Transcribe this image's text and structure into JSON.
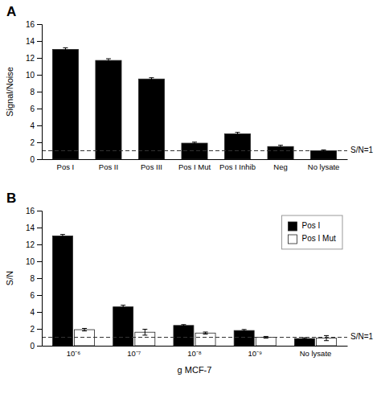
{
  "chart_data": [
    {
      "type": "bar",
      "title": "A",
      "categories": [
        "Pos I",
        "Pos II",
        "Pos III",
        "Pos I\nMut",
        "Pos I\nInhib",
        "Neg",
        "No lysate"
      ],
      "values": [
        13.0,
        11.7,
        9.5,
        1.9,
        3.0,
        1.5,
        1.0
      ],
      "errors": [
        0.2,
        0.2,
        0.15,
        0.12,
        0.18,
        0.15,
        0.1
      ],
      "color": "#000000",
      "ylabel": "Signal/Noise",
      "ylim": [
        0,
        16
      ],
      "yticks": [
        0,
        2,
        4,
        6,
        8,
        10,
        12,
        14,
        16
      ],
      "grid": false,
      "annotations": [
        {
          "text": "S/N=1",
          "y": 1.0,
          "color": "#333333",
          "line_style": "dashed"
        }
      ]
    },
    {
      "type": "bar",
      "title": "B",
      "categories": [
        "10⁻⁶",
        "10⁻⁷",
        "10⁻⁸",
        "10⁻⁹",
        "No lysate"
      ],
      "series": [
        {
          "name": "Pos I",
          "color": "#000000",
          "values": [
            13.0,
            4.6,
            2.4,
            1.8,
            0.85
          ],
          "errors": [
            0.18,
            0.2,
            0.1,
            0.12,
            0.1
          ]
        },
        {
          "name": "Pos I Mut",
          "color": "#ffffff",
          "values": [
            1.9,
            1.6,
            1.5,
            1.0,
            0.9
          ],
          "errors": [
            0.15,
            0.35,
            0.12,
            0.1,
            0.3
          ]
        }
      ],
      "xlabel": "g MCF-7",
      "ylabel": "S/N",
      "ylim": [
        0,
        16
      ],
      "yticks": [
        0,
        2,
        4,
        6,
        8,
        10,
        12,
        14,
        16
      ],
      "grid": false,
      "legend": "upper right",
      "annotations": [
        {
          "text": "S/N=1",
          "y": 1.0,
          "color": "#333333",
          "line_style": "dashed"
        }
      ]
    }
  ]
}
